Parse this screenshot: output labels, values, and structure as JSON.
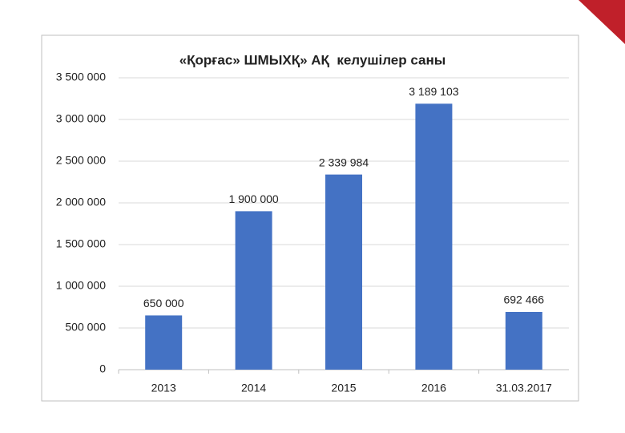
{
  "chart_data": {
    "type": "bar",
    "title": "«Қорғас» ШМЫХҚ» АҚ  келушілер саны",
    "categories": [
      "2013",
      "2014",
      "2015",
      "2016",
      "31.03.2017"
    ],
    "values": [
      650000,
      1900000,
      2339984,
      3189103,
      692466
    ],
    "value_labels": [
      "650 000",
      "1 900 000",
      "2 339 984",
      "3 189 103",
      "692 466"
    ],
    "color": "#4472c4",
    "ylim": [
      0,
      3500000
    ],
    "yticks": [
      0,
      {
        "value": 500000,
        "label": "500 000"
      },
      {
        "value": 1000000,
        "label": "1 000 000"
      },
      {
        "value": 1500000,
        "label": "1 500 000"
      },
      {
        "value": 2000000,
        "label": "2 000 000"
      },
      {
        "value": 2500000,
        "label": "2 500 000"
      },
      {
        "value": 3000000,
        "label": "3 000 000"
      },
      {
        "value": 3500000,
        "label": "3 500 000"
      }
    ],
    "grid": true
  }
}
